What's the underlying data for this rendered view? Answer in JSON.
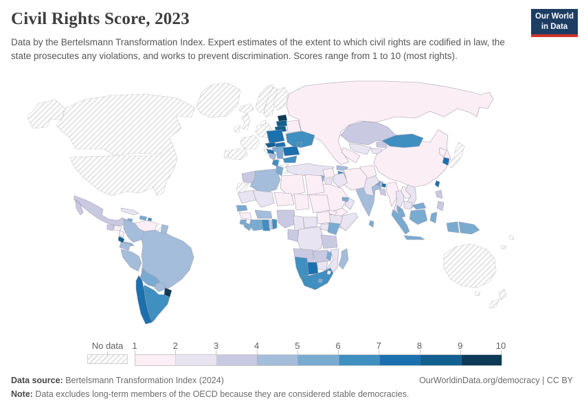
{
  "header": {
    "title": "Civil Rights Score, 2023",
    "subtitle": "Data by the Bertelsmann Transformation Index. Expert estimates of the extent to which civil rights are codified in law, the state prosecutes any violations, and works to prevent discrimination. Scores range from 1 to 10 (most rights).",
    "logo": {
      "line1": "Our World",
      "line2": "in Data",
      "bg_color": "#1d3d63",
      "bar_color": "#d0342c"
    }
  },
  "legend": {
    "no_data_label": "No data",
    "ticks": [
      "1",
      "2",
      "3",
      "4",
      "5",
      "6",
      "7",
      "8",
      "9",
      "10"
    ],
    "bins": [
      {
        "range": "1-2",
        "color": "#fbeef5"
      },
      {
        "range": "2-3",
        "color": "#e8e4f1"
      },
      {
        "range": "3-4",
        "color": "#c9c9e2"
      },
      {
        "range": "4-5",
        "color": "#a3bddb"
      },
      {
        "range": "5-6",
        "color": "#79abd1"
      },
      {
        "range": "6-7",
        "color": "#3f8fc0"
      },
      {
        "range": "7-8",
        "color": "#1b70ae"
      },
      {
        "range": "8-9",
        "color": "#11608f"
      },
      {
        "range": "9-10",
        "color": "#0c3a57"
      }
    ],
    "no_data_border": "#c9c9c9",
    "country_border": "#a49eae"
  },
  "footer": {
    "source_label": "Data source:",
    "source_rest": " Bertelsmann Transformation Index (2024)",
    "link": "OurWorldinData.org/democracy | CC BY",
    "note_label": "Note:",
    "note_rest": " Data excludes long-term members of the OECD because they are considered stable democracies."
  },
  "chart_data": {
    "type": "choropleth_map",
    "title": "Civil Rights Score, 2023",
    "unit": "score (1 to 10, most rights)",
    "legend_position": "bottom",
    "regions": [
      {
        "name": "Russia",
        "score_bin": "1-2"
      },
      {
        "name": "Canada",
        "score_bin": "No data"
      },
      {
        "name": "United States",
        "score_bin": "No data"
      },
      {
        "name": "Greenland",
        "score_bin": "No data"
      },
      {
        "name": "Iceland",
        "score_bin": "No data"
      },
      {
        "name": "Norway",
        "score_bin": "No data"
      },
      {
        "name": "Sweden",
        "score_bin": "No data"
      },
      {
        "name": "Finland",
        "score_bin": "No data"
      },
      {
        "name": "Germany",
        "score_bin": "No data"
      },
      {
        "name": "Denmark",
        "score_bin": "No data"
      },
      {
        "name": "United Kingdom",
        "score_bin": "No data"
      },
      {
        "name": "Ireland",
        "score_bin": "No data"
      },
      {
        "name": "France",
        "score_bin": "No data"
      },
      {
        "name": "Spain",
        "score_bin": "No data"
      },
      {
        "name": "Portugal",
        "score_bin": "No data"
      },
      {
        "name": "Italy",
        "score_bin": "No data"
      },
      {
        "name": "Greece",
        "score_bin": "No data"
      },
      {
        "name": "Estonia",
        "score_bin": "9-10"
      },
      {
        "name": "Latvia",
        "score_bin": "8-9"
      },
      {
        "name": "Lithuania",
        "score_bin": "8-9"
      },
      {
        "name": "Belarus",
        "score_bin": "1-2"
      },
      {
        "name": "Poland",
        "score_bin": "7-8"
      },
      {
        "name": "Ukraine",
        "score_bin": "6-7"
      },
      {
        "name": "Czechia",
        "score_bin": "8-9"
      },
      {
        "name": "Slovakia",
        "score_bin": "7-8"
      },
      {
        "name": "Hungary",
        "score_bin": "5-6"
      },
      {
        "name": "Romania",
        "score_bin": "7-8"
      },
      {
        "name": "Moldova",
        "score_bin": "6-7"
      },
      {
        "name": "Croatia",
        "score_bin": "7-8"
      },
      {
        "name": "Bosnia and Herzegovina",
        "score_bin": "4-5"
      },
      {
        "name": "Serbia",
        "score_bin": "5-6"
      },
      {
        "name": "Albania",
        "score_bin": "6-7"
      },
      {
        "name": "Bulgaria",
        "score_bin": "6-7"
      },
      {
        "name": "Turkey",
        "score_bin": "2-3"
      },
      {
        "name": "Georgia",
        "score_bin": "4-5"
      },
      {
        "name": "Armenia",
        "score_bin": "6-7"
      },
      {
        "name": "Azerbaijan",
        "score_bin": "3-4"
      },
      {
        "name": "Kazakhstan",
        "score_bin": "3-4"
      },
      {
        "name": "Uzbekistan",
        "score_bin": "2-3"
      },
      {
        "name": "Turkmenistan",
        "score_bin": "1-2"
      },
      {
        "name": "Kyrgyzstan",
        "score_bin": "3-4"
      },
      {
        "name": "Tajikistan",
        "score_bin": "2-3"
      },
      {
        "name": "China",
        "score_bin": "1-2"
      },
      {
        "name": "Mongolia",
        "score_bin": "6-7"
      },
      {
        "name": "North Korea",
        "score_bin": "1-2"
      },
      {
        "name": "South Korea",
        "score_bin": "7-8"
      },
      {
        "name": "Japan",
        "score_bin": "No data"
      },
      {
        "name": "Taiwan",
        "score_bin": "7-8"
      },
      {
        "name": "India",
        "score_bin": "4-5"
      },
      {
        "name": "Nepal",
        "score_bin": "5-6"
      },
      {
        "name": "Bhutan",
        "score_bin": "7-8"
      },
      {
        "name": "Bangladesh",
        "score_bin": "3-4"
      },
      {
        "name": "Sri Lanka",
        "score_bin": "5-6"
      },
      {
        "name": "Pakistan",
        "score_bin": "2-3"
      },
      {
        "name": "Afghanistan",
        "score_bin": "1-2"
      },
      {
        "name": "Iran",
        "score_bin": "1-2"
      },
      {
        "name": "Iraq",
        "score_bin": "2-3"
      },
      {
        "name": "Syria",
        "score_bin": "1-2"
      },
      {
        "name": "Lebanon",
        "score_bin": "5-6"
      },
      {
        "name": "Jordan",
        "score_bin": "2-3"
      },
      {
        "name": "Saudi Arabia",
        "score_bin": "1-2"
      },
      {
        "name": "Yemen",
        "score_bin": "1-2"
      },
      {
        "name": "Oman",
        "score_bin": "2-3"
      },
      {
        "name": "United Arab Emirates",
        "score_bin": "5-6"
      },
      {
        "name": "Myanmar",
        "score_bin": "1-2"
      },
      {
        "name": "Thailand",
        "score_bin": "2-3"
      },
      {
        "name": "Laos",
        "score_bin": "1-2"
      },
      {
        "name": "Vietnam",
        "score_bin": "2-3"
      },
      {
        "name": "Cambodia",
        "score_bin": "2-3"
      },
      {
        "name": "Malaysia",
        "score_bin": "5-6"
      },
      {
        "name": "Philippines",
        "score_bin": "3-4"
      },
      {
        "name": "Indonesia",
        "score_bin": "5-6"
      },
      {
        "name": "Papua New Guinea",
        "score_bin": "5-6"
      },
      {
        "name": "Australia",
        "score_bin": "No data"
      },
      {
        "name": "New Zealand",
        "score_bin": "No data"
      },
      {
        "name": "Fiji",
        "score_bin": "No data"
      },
      {
        "name": "New Caledonia",
        "score_bin": "No data"
      },
      {
        "name": "Morocco",
        "score_bin": "3-4"
      },
      {
        "name": "Western Sahara",
        "score_bin": "No data"
      },
      {
        "name": "Algeria",
        "score_bin": "4-5"
      },
      {
        "name": "Tunisia",
        "score_bin": "5-6"
      },
      {
        "name": "Libya",
        "score_bin": "1-2"
      },
      {
        "name": "Egypt",
        "score_bin": "1-2"
      },
      {
        "name": "Mauritania",
        "score_bin": "2-3"
      },
      {
        "name": "Mali",
        "score_bin": "2-3"
      },
      {
        "name": "Niger",
        "score_bin": "1-2"
      },
      {
        "name": "Chad",
        "score_bin": "1-2"
      },
      {
        "name": "Sudan",
        "score_bin": "1-2"
      },
      {
        "name": "Eritrea",
        "score_bin": "1-2"
      },
      {
        "name": "Ethiopia",
        "score_bin": "2-3"
      },
      {
        "name": "Somalia",
        "score_bin": "2-3"
      },
      {
        "name": "Senegal",
        "score_bin": "5-6"
      },
      {
        "name": "Guinea",
        "score_bin": "1-2"
      },
      {
        "name": "Sierra Leone",
        "score_bin": "5-6"
      },
      {
        "name": "Liberia",
        "score_bin": "5-6"
      },
      {
        "name": "Côte d'Ivoire",
        "score_bin": "5-6"
      },
      {
        "name": "Ghana",
        "score_bin": "6-7"
      },
      {
        "name": "Togo",
        "score_bin": "3-4"
      },
      {
        "name": "Benin",
        "score_bin": "6-7"
      },
      {
        "name": "Burkina Faso",
        "score_bin": "4-5"
      },
      {
        "name": "Nigeria",
        "score_bin": "3-4"
      },
      {
        "name": "Cameroon",
        "score_bin": "2-3"
      },
      {
        "name": "Central African Republic",
        "score_bin": "2-3"
      },
      {
        "name": "South Sudan",
        "score_bin": "1-2"
      },
      {
        "name": "Congo",
        "score_bin": "3-4"
      },
      {
        "name": "Democratic Republic of Congo",
        "score_bin": "2-3"
      },
      {
        "name": "Uganda",
        "score_bin": "2-3"
      },
      {
        "name": "Kenya",
        "score_bin": "5-6"
      },
      {
        "name": "Tanzania",
        "score_bin": "3-4"
      },
      {
        "name": "Angola",
        "score_bin": "3-4"
      },
      {
        "name": "Zambia",
        "score_bin": "3-4"
      },
      {
        "name": "Malawi",
        "score_bin": "5-6"
      },
      {
        "name": "Mozambique",
        "score_bin": "2-3"
      },
      {
        "name": "Zimbabwe",
        "score_bin": "2-3"
      },
      {
        "name": "Botswana",
        "score_bin": "7-8"
      },
      {
        "name": "Namibia",
        "score_bin": "6-7"
      },
      {
        "name": "South Africa",
        "score_bin": "6-7"
      },
      {
        "name": "Lesotho",
        "score_bin": "5-6"
      },
      {
        "name": "Eswatini",
        "score_bin": "1-2"
      },
      {
        "name": "Madagascar",
        "score_bin": "4-5"
      },
      {
        "name": "Mexico",
        "score_bin": "3-4"
      },
      {
        "name": "Guatemala",
        "score_bin": "3-4"
      },
      {
        "name": "Honduras",
        "score_bin": "1-2"
      },
      {
        "name": "Nicaragua",
        "score_bin": "1-2"
      },
      {
        "name": "Costa Rica",
        "score_bin": "8-9"
      },
      {
        "name": "Panama",
        "score_bin": "5-6"
      },
      {
        "name": "Cuba",
        "score_bin": "2-3"
      },
      {
        "name": "Jamaica",
        "score_bin": "5-6"
      },
      {
        "name": "Dominican Republic",
        "score_bin": "5-6"
      },
      {
        "name": "Venezuela",
        "score_bin": "1-2"
      },
      {
        "name": "Guyana",
        "score_bin": "No data"
      },
      {
        "name": "Suriname",
        "score_bin": "4-5"
      },
      {
        "name": "Colombia",
        "score_bin": "4-5"
      },
      {
        "name": "Trinidad and Tobago",
        "score_bin": "6-7"
      },
      {
        "name": "Ecuador",
        "score_bin": "4-5"
      },
      {
        "name": "Peru",
        "score_bin": "4-5"
      },
      {
        "name": "Brazil",
        "score_bin": "4-5"
      },
      {
        "name": "Bolivia",
        "score_bin": "5-6"
      },
      {
        "name": "Paraguay",
        "score_bin": "4-5"
      },
      {
        "name": "Argentina",
        "score_bin": "6-7"
      },
      {
        "name": "Chile",
        "score_bin": "7-8"
      },
      {
        "name": "Uruguay",
        "score_bin": "9-10"
      }
    ]
  }
}
